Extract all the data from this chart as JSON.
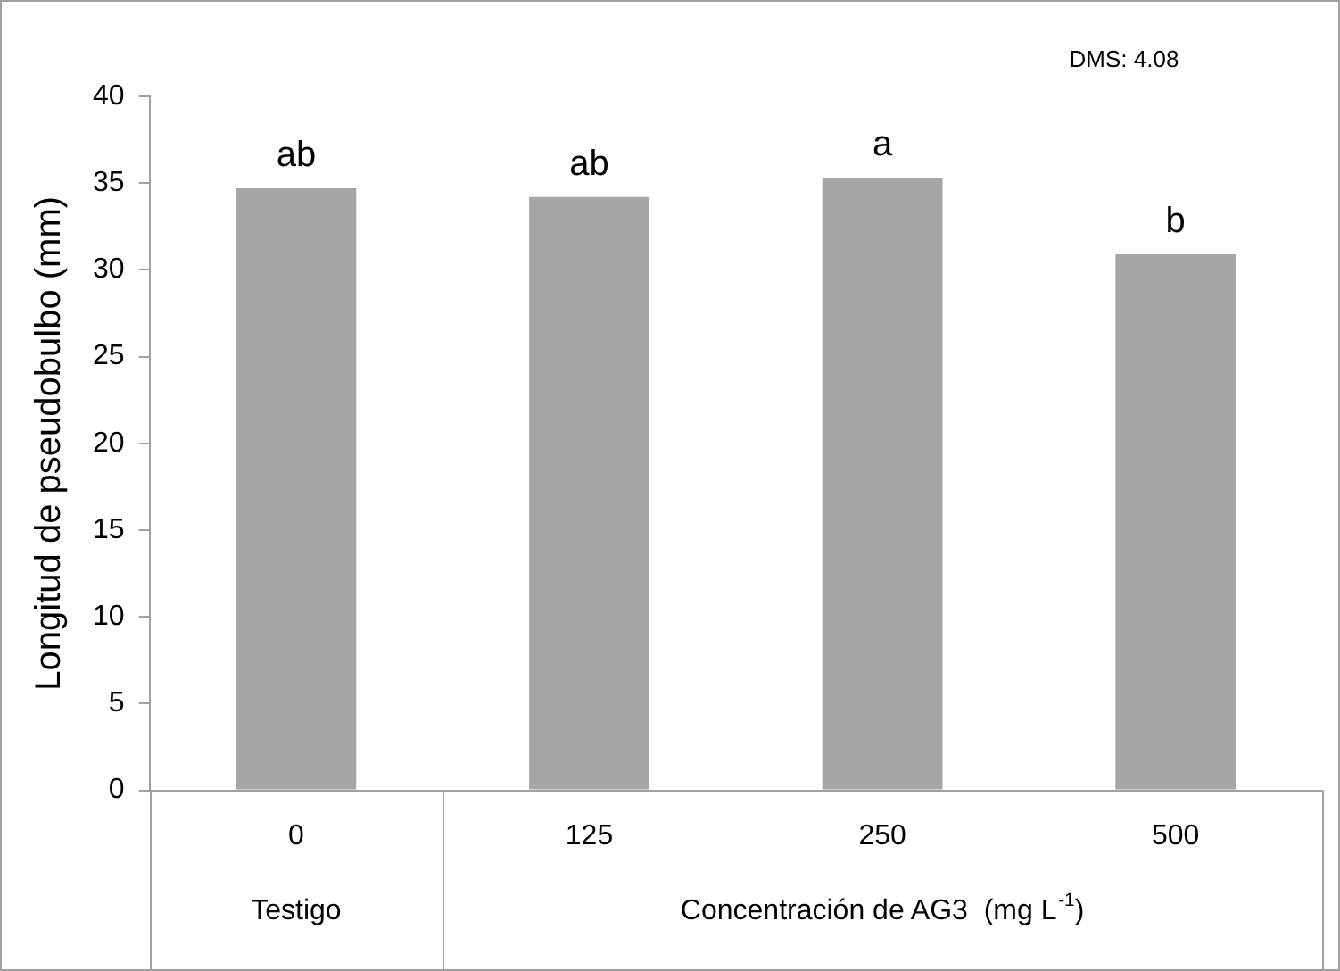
{
  "chart_data": {
    "type": "bar",
    "ylabel": "Longitud de pseudobulbo (mm)",
    "xlabel": "Concentración de AG3  (mg L$^{-1}$)",
    "categories": [
      "0",
      "125",
      "250",
      "500"
    ],
    "values": [
      34.7,
      34.2,
      35.3,
      30.9
    ],
    "color": "#a6a6a6",
    "ylim": [
      0,
      40
    ],
    "yticks": [
      0,
      5,
      10,
      15,
      20,
      25,
      30,
      35,
      40
    ],
    "grid": false,
    "legend": false,
    "annotations": [
      "Testigo",
      "DMS: 4.08",
      {
        "text": "ab",
        "x": "0",
        "y": 34.7
      },
      {
        "text": "ab",
        "x": "125",
        "y": 34.2
      },
      {
        "text": "a",
        "x": "250",
        "y": 35.3
      },
      {
        "text": "b",
        "x": "500",
        "y": 30.9
      }
    ]
  }
}
